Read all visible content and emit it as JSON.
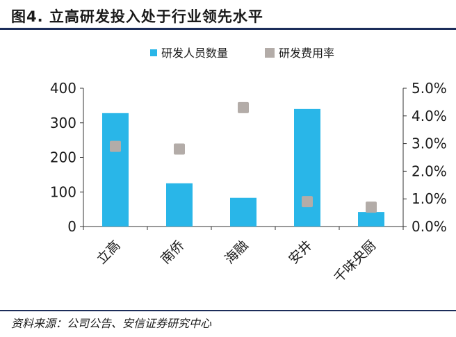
{
  "title": "图4. 立高研发投入处于行业领先水平",
  "source": "资料来源：公司公告、安信证券研究中心",
  "colors": {
    "bar": "#29b6e8",
    "marker": "#b3aca8",
    "rule": "#1c2d5a"
  },
  "chart_data": {
    "type": "bar",
    "categories": [
      "立高",
      "南侨",
      "海融",
      "安井",
      "千味央厨"
    ],
    "series": [
      {
        "name": "研发人员数量",
        "type": "bar",
        "axis": "left",
        "values": [
          328,
          125,
          83,
          340,
          42
        ]
      },
      {
        "name": "研发费用率",
        "type": "scatter",
        "axis": "right",
        "values": [
          2.9,
          2.8,
          4.3,
          0.9,
          0.7
        ]
      }
    ],
    "y_left": {
      "min": 0,
      "max": 400,
      "ticks": [
        "0",
        "100",
        "200",
        "300",
        "400"
      ]
    },
    "y_right": {
      "min": 0,
      "max": 5,
      "ticks": [
        "0.0%",
        "1.0%",
        "2.0%",
        "3.0%",
        "4.0%",
        "5.0%"
      ]
    },
    "legend_position": "top"
  }
}
